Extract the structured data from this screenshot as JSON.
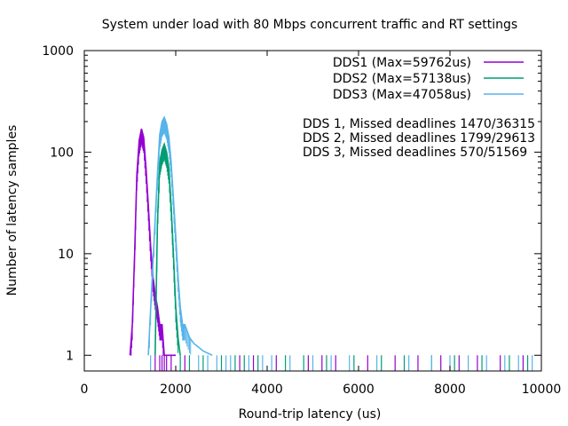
{
  "chart_data": {
    "type": "line",
    "title": "System under load with 80 Mbps concurrent traffic and RT settings",
    "xlabel": "Round-trip latency (us)",
    "ylabel": "Number of latency samples",
    "xlim": [
      0,
      10000
    ],
    "ylim": [
      0.7,
      1000
    ],
    "y_scale": "log",
    "grid": false,
    "legend_position": "top-right",
    "x_ticks": [
      {
        "value": 0,
        "label": "0"
      },
      {
        "value": 2000,
        "label": "2000"
      },
      {
        "value": 4000,
        "label": "4000"
      },
      {
        "value": 6000,
        "label": "6000"
      },
      {
        "value": 8000,
        "label": "8000"
      },
      {
        "value": 10000,
        "label": "10000"
      }
    ],
    "y_ticks": [
      {
        "value": 1,
        "label": "1"
      },
      {
        "value": 10,
        "label": "10"
      },
      {
        "value": 100,
        "label": "100"
      },
      {
        "value": 1000,
        "label": "1000"
      }
    ],
    "series": [
      {
        "name": "DDS1 (Max=59762us)",
        "color": "#9400d3",
        "points": [
          [
            1000,
            1
          ],
          [
            1050,
            2
          ],
          [
            1100,
            10
          ],
          [
            1150,
            60
          ],
          [
            1200,
            130
          ],
          [
            1250,
            170
          ],
          [
            1300,
            140
          ],
          [
            1350,
            70
          ],
          [
            1400,
            30
          ],
          [
            1450,
            12
          ],
          [
            1500,
            6
          ],
          [
            1550,
            4
          ],
          [
            1600,
            3
          ],
          [
            1650,
            2
          ],
          [
            1700,
            2
          ],
          [
            1750,
            1
          ],
          [
            1800,
            1
          ],
          [
            1900,
            1
          ],
          [
            2000,
            1
          ]
        ],
        "sparse_x": [
          1550,
          1650,
          1700,
          1750,
          1800,
          1900,
          2200,
          3400,
          3700,
          4200,
          4900,
          5200,
          5500,
          6200,
          6800,
          7300,
          7800,
          8200,
          8600,
          9100,
          9600
        ]
      },
      {
        "name": "DDS2 (Max=57138us)",
        "color": "#009e73",
        "points": [
          [
            1550,
            1
          ],
          [
            1600,
            20
          ],
          [
            1650,
            80
          ],
          [
            1700,
            105
          ],
          [
            1750,
            120
          ],
          [
            1800,
            100
          ],
          [
            1850,
            70
          ],
          [
            1900,
            30
          ],
          [
            1950,
            10
          ],
          [
            2000,
            3
          ],
          [
            2050,
            1.5
          ],
          [
            2100,
            1
          ]
        ],
        "sparse_x": [
          2100,
          2300,
          2600,
          3000,
          3300,
          3500,
          3800,
          4400,
          4800,
          5300,
          5900,
          6500,
          7000,
          7600,
          8100,
          8700,
          9300,
          9700
        ]
      },
      {
        "name": "DDS3 (Max=47058us)",
        "color": "#56b4e9",
        "points": [
          [
            1400,
            1
          ],
          [
            1500,
            8
          ],
          [
            1600,
            60
          ],
          [
            1650,
            150
          ],
          [
            1700,
            200
          ],
          [
            1750,
            220
          ],
          [
            1800,
            190
          ],
          [
            1850,
            140
          ],
          [
            1900,
            80
          ],
          [
            1950,
            35
          ],
          [
            2000,
            15
          ],
          [
            2050,
            6
          ],
          [
            2100,
            3
          ],
          [
            2150,
            2
          ],
          [
            2200,
            2
          ],
          [
            2300,
            1.5
          ],
          [
            2400,
            1.3
          ],
          [
            2500,
            1.2
          ],
          [
            2600,
            1.1
          ],
          [
            2800,
            1
          ]
        ],
        "sparse_x": [
          1450,
          2500,
          2700,
          2900,
          3100,
          3200,
          3600,
          3900,
          4100,
          4500,
          5000,
          5400,
          5800,
          6400,
          7100,
          7600,
          8000,
          8400,
          8800,
          9200,
          9500,
          9800
        ]
      }
    ],
    "annotations": [
      "DDS 1, Missed deadlines 1470/36315",
      "DDS 2, Missed deadlines 1799/29613",
      "DDS 3, Missed deadlines 570/51569"
    ]
  }
}
